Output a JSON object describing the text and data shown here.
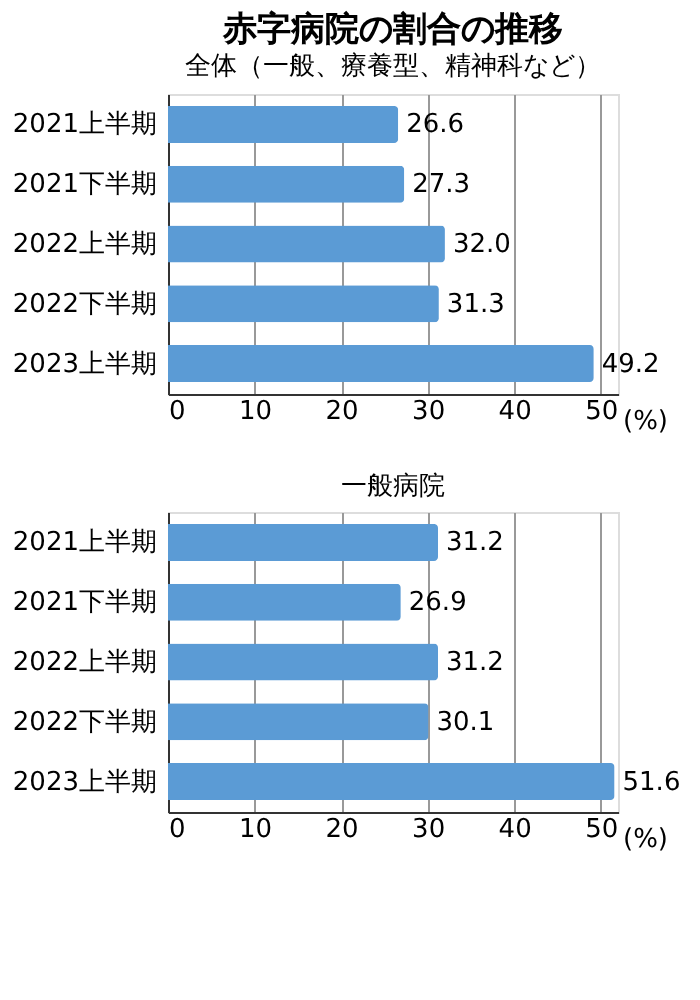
{
  "chart_data": [
    {
      "type": "bar",
      "orientation": "horizontal",
      "title": "赤字病院の割合の推移",
      "subtitle": "全体（一般、療養型、精神科など）",
      "categories": [
        "2021上半期",
        "2021下半期",
        "2022上半期",
        "2022下半期",
        "2023上半期"
      ],
      "values": [
        26.6,
        27.3,
        32.0,
        31.3,
        49.2
      ],
      "value_labels": [
        "26.6",
        "27.3",
        "32.0",
        "31.3",
        "49.2"
      ],
      "color": "#5b9bd5",
      "xlim": [
        0,
        52
      ],
      "xticks": [
        0,
        10,
        20,
        30,
        40,
        50
      ],
      "xlabel": "(%)",
      "grid": "x"
    },
    {
      "type": "bar",
      "orientation": "horizontal",
      "title": "一般病院",
      "categories": [
        "2021上半期",
        "2021下半期",
        "2022上半期",
        "2022下半期",
        "2023上半期"
      ],
      "values": [
        31.2,
        26.9,
        31.2,
        30.1,
        51.6
      ],
      "value_labels": [
        "31.2",
        "26.9",
        "31.2",
        "30.1",
        "51.6"
      ],
      "color": "#5b9bd5",
      "xlim": [
        0,
        52
      ],
      "xticks": [
        0,
        10,
        20,
        30,
        40,
        50
      ],
      "xlabel": "(%)",
      "grid": "x"
    }
  ]
}
